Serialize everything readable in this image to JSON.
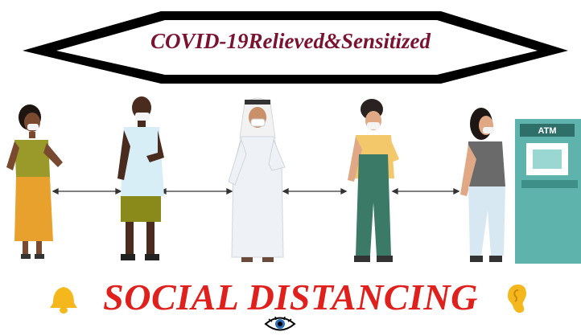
{
  "banner": {
    "title": "COVID-19Relieved&Sensitized"
  },
  "atm": {
    "label": "ATM"
  },
  "headline": {
    "text": "SOCIAL DISTANCING"
  },
  "icons": {
    "left": "bell-icon",
    "right": "ear-icon",
    "bottom": "eye-icon"
  },
  "colors": {
    "banner_title": "#7a1230",
    "headline": "#e0201c",
    "atm": "#5fb3ad"
  }
}
